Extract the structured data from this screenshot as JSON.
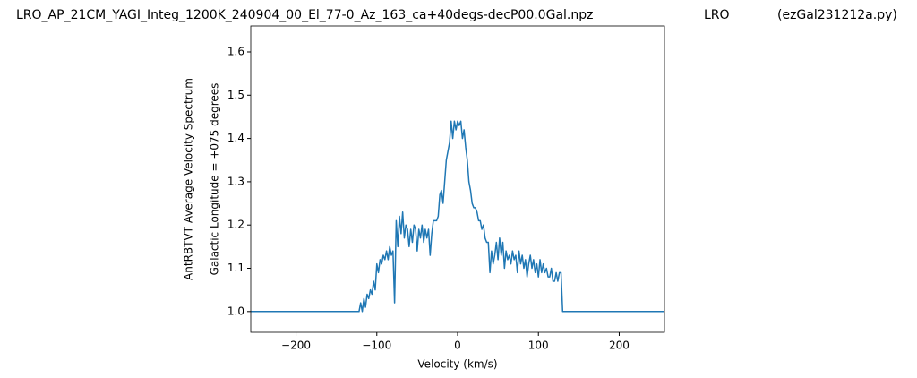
{
  "chart_data": {
    "type": "line",
    "title": "LRO_AP_21CM_YAGI_Integ_1200K_240904_00_El_77-0_Az_163_ca+40degs-decP00.0Gal.npz",
    "title_site": "LRO",
    "title_program": "(ezGal231212a.py)",
    "xlabel": "Velocity (km/s)",
    "ylabel": [
      "AntRBTVT Average Velocity Spectrum",
      "Galactic Longitude = +075 degrees"
    ],
    "color": "#1f77b4",
    "xlim": [
      -256,
      256
    ],
    "ylim": [
      0.952,
      1.66
    ],
    "xticks": [
      {
        "value": -200,
        "label": "−200"
      },
      {
        "value": -100,
        "label": "−100"
      },
      0,
      100,
      200
    ],
    "yticks": [
      {
        "value": 1.0,
        "label": "1.0"
      },
      1.1,
      1.2,
      1.3,
      1.4,
      1.5,
      1.6
    ],
    "x": [
      -256,
      -122,
      -120,
      -118,
      -116,
      -114,
      -112,
      -110,
      -108,
      -106,
      -104,
      -102,
      -100,
      -98,
      -96,
      -94,
      -92,
      -90,
      -88,
      -86,
      -84,
      -82,
      -80,
      -78,
      -76,
      -74,
      -72,
      -70,
      -68,
      -66,
      -64,
      -62,
      -60,
      -58,
      -56,
      -54,
      -52,
      -50,
      -48,
      -46,
      -44,
      -42,
      -40,
      -38,
      -36,
      -34,
      -32,
      -30,
      -28,
      -26,
      -24,
      -22,
      -20,
      -18,
      -16,
      -14,
      -12,
      -10,
      -8,
      -6,
      -4,
      -2,
      0,
      2,
      4,
      6,
      8,
      10,
      12,
      14,
      16,
      18,
      20,
      22,
      24,
      26,
      28,
      30,
      32,
      34,
      36,
      38,
      40,
      42,
      44,
      46,
      48,
      50,
      52,
      54,
      56,
      58,
      60,
      62,
      64,
      66,
      68,
      70,
      72,
      74,
      76,
      78,
      80,
      82,
      84,
      86,
      88,
      90,
      92,
      94,
      96,
      98,
      100,
      102,
      104,
      106,
      108,
      110,
      112,
      114,
      116,
      118,
      120,
      122,
      124,
      126,
      128,
      130,
      256
    ],
    "values": [
      1.0,
      1.0,
      1.02,
      1.0,
      1.03,
      1.01,
      1.04,
      1.03,
      1.05,
      1.04,
      1.07,
      1.05,
      1.11,
      1.09,
      1.12,
      1.11,
      1.13,
      1.12,
      1.14,
      1.12,
      1.15,
      1.13,
      1.14,
      1.02,
      1.21,
      1.15,
      1.22,
      1.18,
      1.23,
      1.17,
      1.2,
      1.19,
      1.15,
      1.19,
      1.16,
      1.2,
      1.19,
      1.14,
      1.19,
      1.17,
      1.2,
      1.16,
      1.19,
      1.17,
      1.19,
      1.13,
      1.18,
      1.21,
      1.21,
      1.21,
      1.22,
      1.27,
      1.28,
      1.25,
      1.3,
      1.35,
      1.37,
      1.39,
      1.44,
      1.4,
      1.44,
      1.42,
      1.44,
      1.43,
      1.44,
      1.4,
      1.42,
      1.38,
      1.35,
      1.3,
      1.28,
      1.25,
      1.24,
      1.24,
      1.23,
      1.21,
      1.21,
      1.19,
      1.2,
      1.17,
      1.16,
      1.16,
      1.09,
      1.14,
      1.11,
      1.13,
      1.16,
      1.12,
      1.17,
      1.13,
      1.16,
      1.1,
      1.14,
      1.12,
      1.13,
      1.11,
      1.14,
      1.12,
      1.13,
      1.09,
      1.14,
      1.11,
      1.13,
      1.1,
      1.12,
      1.08,
      1.11,
      1.13,
      1.1,
      1.12,
      1.09,
      1.11,
      1.08,
      1.12,
      1.09,
      1.11,
      1.09,
      1.1,
      1.08,
      1.08,
      1.1,
      1.07,
      1.07,
      1.09,
      1.07,
      1.09,
      1.09,
      1.0,
      1.0
    ]
  }
}
